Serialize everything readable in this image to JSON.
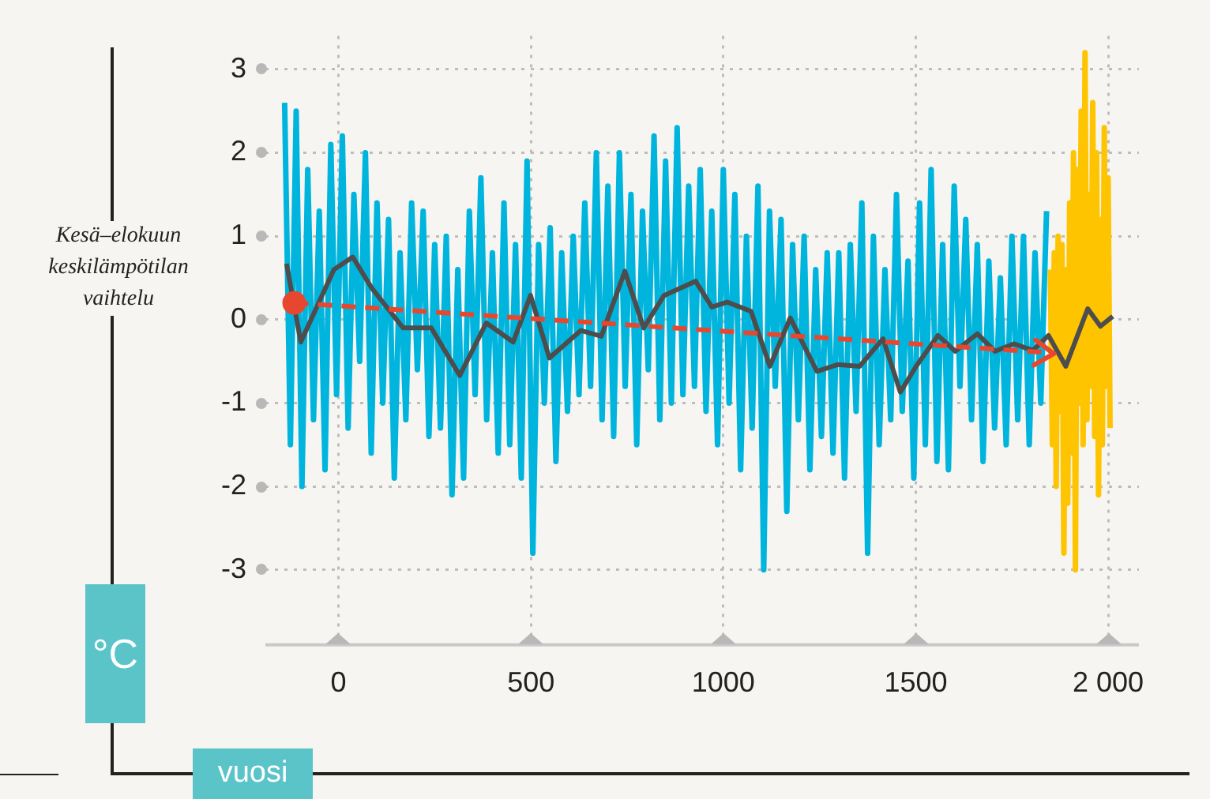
{
  "chart_data": {
    "type": "line",
    "ylabel": "Kesä–elokuun keskilämpötilan vaihtelu",
    "xlabel": "vuosi",
    "annotations": [
      "°C"
    ],
    "xlim": [
      -190,
      2080
    ],
    "ylim": [
      -3.9,
      3.4
    ],
    "xticks": [
      0,
      500,
      1000,
      1500,
      {
        "value": 2000,
        "label": "2 000"
      }
    ],
    "yticks": [
      -3,
      -2,
      -1,
      0,
      1,
      2,
      3
    ],
    "grid": true,
    "marker": "none",
    "series": [
      {
        "color": "#00b5dd",
        "x": [
          -140,
          -125,
          -110,
          -95,
          -80,
          -65,
          -50,
          -35,
          -20,
          -5,
          10,
          25,
          40,
          55,
          70,
          85,
          100,
          115,
          130,
          145,
          160,
          175,
          190,
          205,
          220,
          235,
          250,
          265,
          280,
          295,
          310,
          325,
          340,
          355,
          370,
          385,
          400,
          415,
          430,
          445,
          460,
          475,
          490,
          505,
          520,
          535,
          550,
          565,
          580,
          595,
          610,
          625,
          640,
          655,
          670,
          685,
          700,
          715,
          730,
          745,
          760,
          775,
          790,
          805,
          820,
          835,
          850,
          865,
          880,
          895,
          910,
          925,
          940,
          955,
          970,
          985,
          1000,
          1015,
          1030,
          1045,
          1060,
          1075,
          1090,
          1105,
          1120,
          1135,
          1150,
          1165,
          1180,
          1195,
          1210,
          1225,
          1240,
          1255,
          1270,
          1285,
          1300,
          1315,
          1330,
          1345,
          1360,
          1375,
          1390,
          1405,
          1420,
          1435,
          1450,
          1465,
          1480,
          1495,
          1510,
          1525,
          1540,
          1555,
          1570,
          1585,
          1600,
          1615,
          1630,
          1645,
          1660,
          1675,
          1690,
          1705,
          1720,
          1735,
          1750,
          1765,
          1780,
          1795,
          1810,
          1825,
          1840
        ],
        "values": [
          2.6,
          -1.5,
          2.5,
          -2.0,
          1.8,
          -1.2,
          1.3,
          -1.8,
          2.1,
          -0.9,
          2.2,
          -1.3,
          1.5,
          -0.5,
          2.0,
          -1.6,
          1.4,
          -1.0,
          1.2,
          -1.9,
          0.8,
          -1.2,
          1.4,
          -0.6,
          1.3,
          -1.4,
          0.9,
          -1.3,
          1.0,
          -2.1,
          0.6,
          -1.9,
          1.3,
          -0.9,
          1.7,
          -1.2,
          0.8,
          -1.6,
          1.4,
          -1.5,
          0.9,
          -1.9,
          1.9,
          -2.8,
          0.9,
          -1.0,
          1.1,
          -1.7,
          0.8,
          -1.1,
          1.0,
          -0.9,
          1.4,
          -0.8,
          2.0,
          -1.2,
          1.6,
          -1.4,
          2.0,
          -0.8,
          1.5,
          -1.5,
          1.3,
          -0.6,
          2.2,
          -1.2,
          1.9,
          -1.0,
          2.3,
          -0.9,
          1.6,
          -0.8,
          1.8,
          -1.1,
          1.3,
          -1.5,
          1.8,
          -1.0,
          1.5,
          -1.8,
          1.0,
          -1.3,
          1.6,
          -3.0,
          1.3,
          -0.8,
          1.2,
          -2.3,
          0.9,
          -1.2,
          1.0,
          -1.8,
          0.6,
          -1.4,
          0.8,
          -1.6,
          0.8,
          -1.9,
          0.9,
          -1.1,
          1.4,
          -2.8,
          1.0,
          -1.5,
          0.6,
          -1.2,
          1.5,
          -1.1,
          0.7,
          -1.9,
          1.4,
          -1.5,
          1.8,
          -1.7,
          0.9,
          -1.8,
          1.6,
          -0.8,
          1.2,
          -1.2,
          0.9,
          -1.7,
          0.7,
          -1.3,
          0.5,
          -1.5,
          1.0,
          -1.2,
          1.0,
          -1.5,
          0.8,
          -1.0,
          1.3
        ]
      },
      {
        "color": "#ffc400",
        "x": [
          1850,
          1855,
          1860,
          1865,
          1870,
          1875,
          1880,
          1885,
          1890,
          1895,
          1900,
          1905,
          1910,
          1915,
          1920,
          1925,
          1930,
          1935,
          1940,
          1945,
          1950,
          1955,
          1960,
          1965,
          1970,
          1975,
          1980,
          1985,
          1990,
          1995,
          2000,
          2005
        ],
        "values": [
          0.6,
          -1.5,
          0.8,
          -2.0,
          1.0,
          -1.1,
          0.9,
          -2.8,
          0.6,
          -2.2,
          1.4,
          -1.6,
          2.0,
          -3.0,
          1.8,
          -1.0,
          2.5,
          -1.5,
          3.2,
          -1.2,
          1.5,
          -0.8,
          2.6,
          -1.4,
          2.0,
          -2.1,
          1.2,
          -1.5,
          2.3,
          -0.8,
          1.7,
          -1.3
        ]
      },
      {
        "color": "#4d4d4d",
        "x": [
          -135,
          -98,
          -12,
          37,
          86,
          168,
          241,
          315,
          384,
          454,
          499,
          548,
          630,
          683,
          744,
          793,
          846,
          928,
          970,
          1010,
          1072,
          1121,
          1174,
          1243,
          1297,
          1354,
          1415,
          1460,
          1501,
          1558,
          1603,
          1660,
          1706,
          1755,
          1804,
          1845,
          1890,
          1947,
          1980,
          2012
        ],
        "values": [
          0.67,
          -0.27,
          0.6,
          0.75,
          0.38,
          -0.1,
          -0.1,
          -0.67,
          -0.04,
          -0.27,
          0.29,
          -0.46,
          -0.13,
          -0.2,
          0.58,
          -0.1,
          0.29,
          0.46,
          0.15,
          0.21,
          0.1,
          -0.56,
          0.02,
          -0.62,
          -0.54,
          -0.56,
          -0.23,
          -0.87,
          -0.56,
          -0.19,
          -0.38,
          -0.17,
          -0.38,
          -0.29,
          -0.37,
          -0.19,
          -0.56,
          0.13,
          -0.08,
          0.04
        ]
      },
      {
        "type": "line",
        "color": "#e8472f",
        "line_style": "dashed",
        "marker": "circle",
        "x": [
          -115,
          1857
        ],
        "values": [
          0.2,
          -0.4
        ]
      }
    ]
  }
}
